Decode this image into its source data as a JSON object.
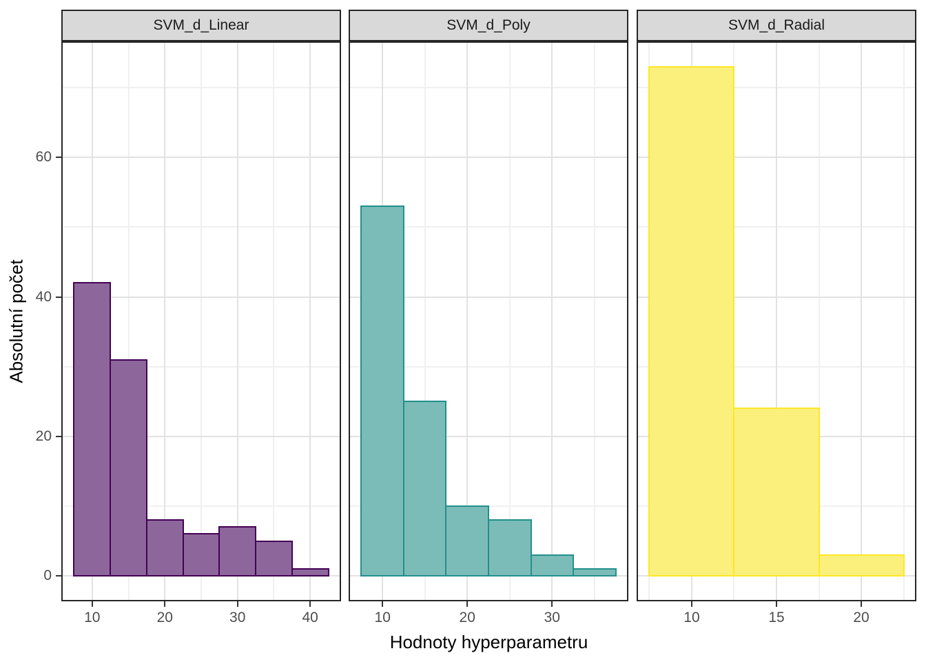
{
  "chart_data": {
    "type": "bar",
    "subtype": "faceted-histogram",
    "xlabel": "Hodnoty hyperparametru",
    "ylabel": "Absolutní počet",
    "grid": "on",
    "y_axis": {
      "range": [
        -3.65,
        76.65
      ],
      "major_ticks": [
        0,
        20,
        40,
        60
      ],
      "minor_gridlines": [
        10,
        30,
        50,
        70
      ]
    },
    "facets": [
      {
        "label": "SVM_d_Linear",
        "fill": "#8D679B",
        "border": "#440154",
        "binwidth": 5,
        "bin_centers": [
          10,
          15,
          20,
          25,
          30,
          35,
          40
        ],
        "counts": [
          42,
          31,
          8,
          6,
          7,
          5,
          1
        ],
        "x_range": [
          5.75,
          44.25
        ],
        "x_ticks": [
          10,
          20,
          30,
          40
        ],
        "x_minor_gridlines": [
          15,
          25,
          35
        ]
      },
      {
        "label": "SVM_d_Poly",
        "fill": "#7CBCB8",
        "border": "#21908C",
        "binwidth": 5,
        "bin_centers": [
          10,
          15,
          20,
          25,
          30,
          35
        ],
        "counts": [
          53,
          25,
          10,
          8,
          3,
          1
        ],
        "x_range": [
          6.0,
          39.0
        ],
        "x_ticks": [
          10,
          20,
          30
        ],
        "x_minor_gridlines": [
          15,
          25,
          35
        ]
      },
      {
        "label": "SVM_d_Radial",
        "fill": "#FCF07D",
        "border": "#FDE725",
        "binwidth": 5,
        "bin_centers": [
          10,
          15,
          20
        ],
        "counts": [
          73,
          24,
          3
        ],
        "x_range": [
          6.75,
          23.25
        ],
        "x_ticks": [
          10,
          15,
          20
        ],
        "x_minor_gridlines": [
          7.5,
          12.5,
          17.5,
          22.5
        ]
      }
    ],
    "colors": {
      "strip_background": "#D9D9D9",
      "panel_border": "#262626",
      "grid_major": "#E2E2E2",
      "grid_minor": "#F0F0F0",
      "tick_mark": "#333333",
      "tick_label": "#4D4D4D",
      "axis_title": "#000000"
    }
  }
}
